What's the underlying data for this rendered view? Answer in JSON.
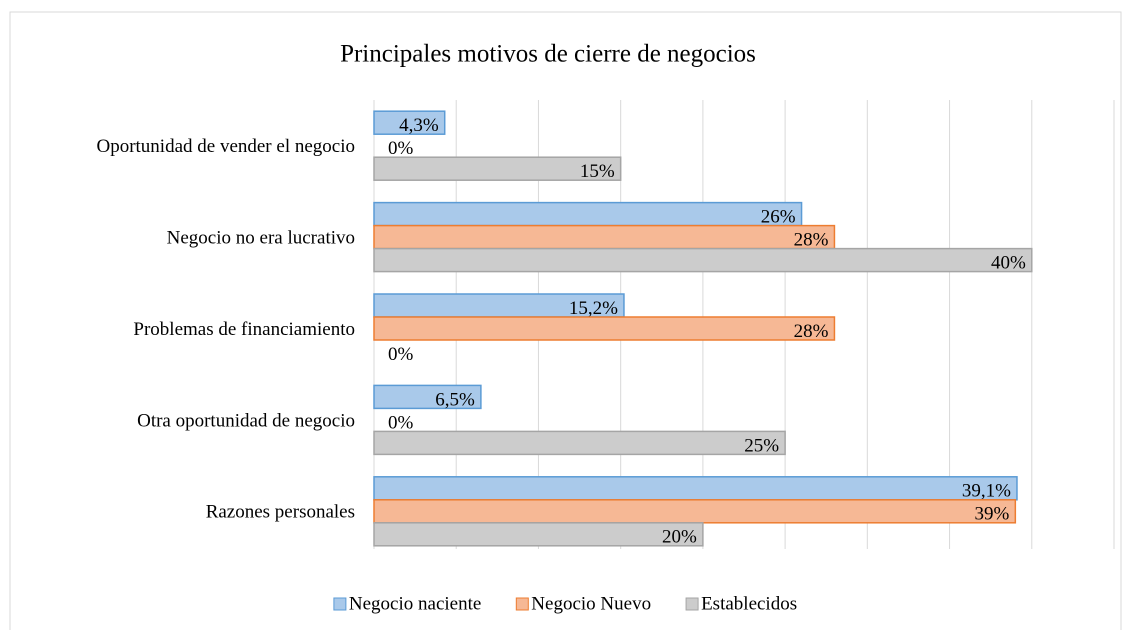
{
  "chart_data": {
    "type": "hbar",
    "title": "Principales motivos de cierre de negocios",
    "categories": [
      "Oportunidad de vender el negocio",
      "Negocio no era lucrativo",
      "Problemas de financiamiento",
      "Otra oportunidad de negocio",
      "Razones personales"
    ],
    "series": [
      {
        "name": "Negocio naciente",
        "color": "#a9c9ea",
        "stroke": "#5b9bd5",
        "values": [
          4.3,
          26,
          15.2,
          6.5,
          39.1
        ],
        "value_labels": [
          "4,3%",
          "26%",
          "15,2%",
          "6,5%",
          "39,1%"
        ]
      },
      {
        "name": "Negocio Nuevo",
        "color": "#f6b895",
        "stroke": "#ed7d31",
        "values": [
          0,
          28,
          28,
          0,
          39
        ],
        "value_labels": [
          "0%",
          "28%",
          "28%",
          "0%",
          "39%"
        ]
      },
      {
        "name": "Establecidos",
        "color": "#cccccc",
        "stroke": "#a5a5a5",
        "values": [
          15,
          40,
          0,
          25,
          20
        ],
        "value_labels": [
          "15%",
          "40%",
          "0%",
          "25%",
          "20%"
        ]
      }
    ],
    "xlim": [
      0,
      45
    ],
    "xticks": [
      0,
      5,
      10,
      15,
      20,
      25,
      30,
      35,
      40,
      45
    ],
    "grid": true,
    "legend": "bottom"
  }
}
